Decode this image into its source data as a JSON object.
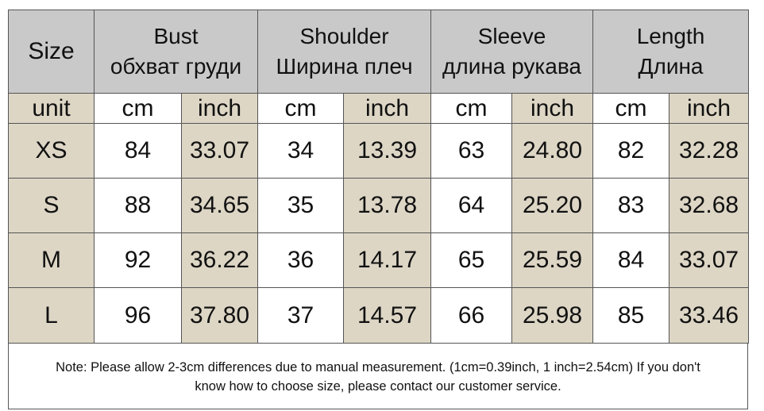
{
  "header": {
    "size_label": "Size",
    "columns": [
      {
        "line1": "Bust",
        "line2": "обхват груди"
      },
      {
        "line1": "Shoulder",
        "line2": "Ширина плеч"
      },
      {
        "line1": "Sleeve",
        "line2": "длина рукава"
      },
      {
        "line1": "Length",
        "line2": "Длина"
      }
    ]
  },
  "units": {
    "label": "unit",
    "values": [
      "cm",
      "inch",
      "cm",
      "inch",
      "cm",
      "inch",
      "cm",
      "inch"
    ]
  },
  "rows": [
    {
      "size": "XS",
      "values": [
        "84",
        "33.07",
        "34",
        "13.39",
        "63",
        "24.80",
        "82",
        "32.28"
      ]
    },
    {
      "size": "S",
      "values": [
        "88",
        "34.65",
        "35",
        "13.78",
        "64",
        "25.20",
        "83",
        "32.68"
      ]
    },
    {
      "size": "M",
      "values": [
        "92",
        "36.22",
        "36",
        "14.17",
        "65",
        "25.59",
        "84",
        "33.07"
      ]
    },
    {
      "size": "L",
      "values": [
        "96",
        "37.80",
        "37",
        "14.57",
        "66",
        "25.98",
        "85",
        "33.46"
      ]
    }
  ],
  "note": {
    "line1": "Note: Please allow 2-3cm differences due to manual measurement. (1cm=0.39inch, 1 inch=2.54cm)  If you don't",
    "line2": "know how to choose size, please contact our customer service."
  },
  "colors": {
    "header_bg": "#c9c9c9",
    "tan_cell": "#ddd6c5",
    "border": "#555555"
  }
}
